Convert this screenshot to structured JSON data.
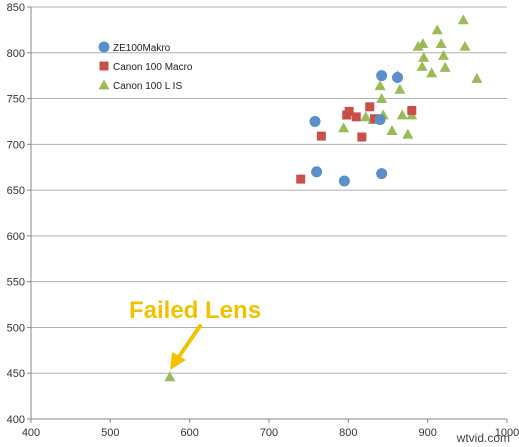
{
  "chart_data": {
    "type": "scatter",
    "title": "",
    "xlabel": "",
    "ylabel": "",
    "xlim": [
      400,
      1000
    ],
    "ylim": [
      400,
      850
    ],
    "x_ticks": [
      400,
      500,
      600,
      700,
      800,
      900,
      1000
    ],
    "y_ticks": [
      400,
      450,
      500,
      550,
      600,
      650,
      700,
      750,
      800,
      850
    ],
    "grid": "horizontal",
    "legend_position": "top-left",
    "series": [
      {
        "name": "ZE100Makro",
        "marker": "circle",
        "color": "#5b8fc9",
        "points": [
          [
            758,
            725
          ],
          [
            760,
            670
          ],
          [
            795,
            660
          ],
          [
            842,
            668
          ],
          [
            840,
            727
          ],
          [
            842,
            775
          ],
          [
            862,
            773
          ]
        ]
      },
      {
        "name": "Canon 100 Macro",
        "marker": "square",
        "color": "#c9504a",
        "points": [
          [
            740,
            662
          ],
          [
            766,
            709
          ],
          [
            798,
            732
          ],
          [
            801,
            736
          ],
          [
            810,
            730
          ],
          [
            817,
            708
          ],
          [
            827,
            741
          ],
          [
            833,
            728
          ],
          [
            880,
            737
          ]
        ]
      },
      {
        "name": "Canon 100 L IS",
        "marker": "triangle",
        "color": "#9bbb59",
        "points": [
          [
            575,
            446
          ],
          [
            794,
            718
          ],
          [
            822,
            730
          ],
          [
            831,
            727
          ],
          [
            840,
            764
          ],
          [
            842,
            750
          ],
          [
            844,
            732
          ],
          [
            855,
            715
          ],
          [
            862,
            775
          ],
          [
            865,
            760
          ],
          [
            868,
            732
          ],
          [
            875,
            711
          ],
          [
            880,
            732
          ],
          [
            888,
            807
          ],
          [
            893,
            785
          ],
          [
            894,
            810
          ],
          [
            895,
            795
          ],
          [
            905,
            778
          ],
          [
            912,
            825
          ],
          [
            917,
            810
          ],
          [
            920,
            797
          ],
          [
            922,
            784
          ],
          [
            945,
            836
          ],
          [
            947,
            807
          ],
          [
            962,
            772
          ]
        ]
      }
    ],
    "annotations": [
      {
        "text": "Failed Lens",
        "color": "#f2c200"
      }
    ],
    "watermark": "wtvid.com"
  }
}
